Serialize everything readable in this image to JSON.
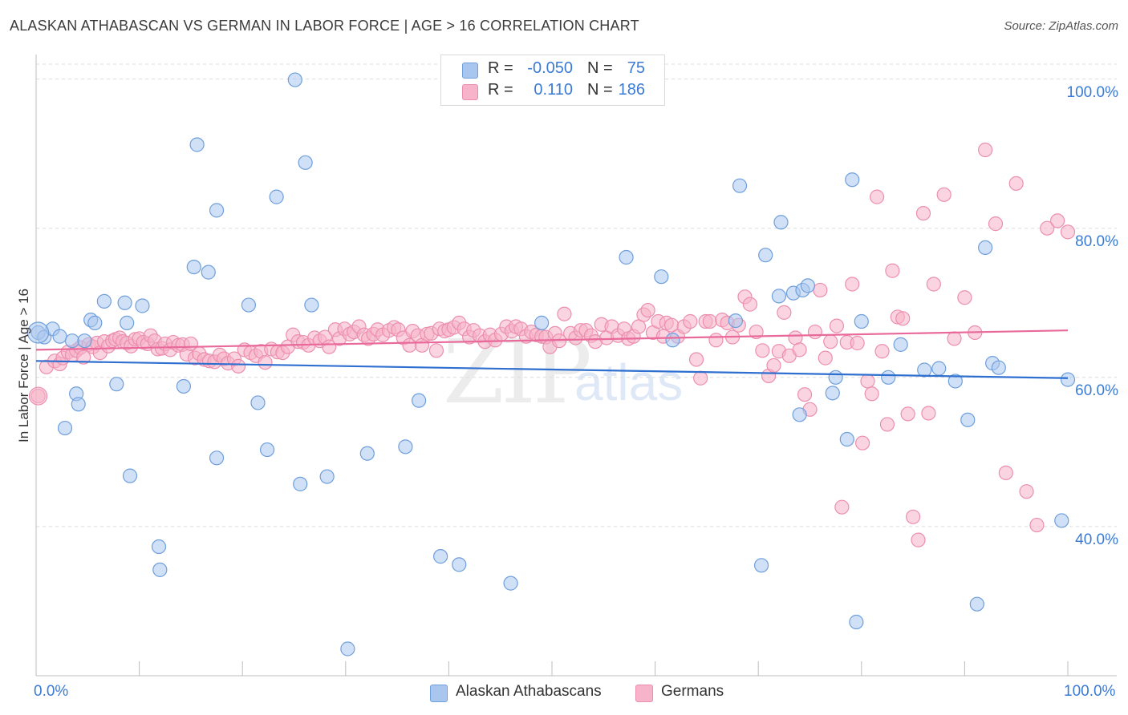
{
  "header": {
    "title": "ALASKAN ATHABASCAN VS GERMAN IN LABOR FORCE | AGE > 16 CORRELATION CHART",
    "source": "Source: ZipAtlas.com"
  },
  "watermark": {
    "zip": "ZIP",
    "atlas": "atlas"
  },
  "legend_top": {
    "rows": [
      {
        "r_label": "R =",
        "r_value": "-0.050",
        "n_label": "N =",
        "n_value": "75",
        "color": "#a9c6ee"
      },
      {
        "r_label": "R =",
        "r_value": "0.110",
        "n_label": "N =",
        "n_value": "186",
        "color": "#f6b3c9"
      }
    ]
  },
  "legend_bottom": {
    "items": [
      {
        "label": "Alaskan Athabascans",
        "color": "#a9c6ee"
      },
      {
        "label": "Germans",
        "color": "#f6b3c9"
      }
    ]
  },
  "colors": {
    "blue_fill": "#a9c6ee",
    "blue_stroke": "#6f9fdc",
    "blue_line": "#2f6fd0",
    "pink_fill": "#f6b3c9",
    "pink_stroke": "#ec8fae",
    "pink_line": "#e8699a",
    "value_text": "#3a7bd5",
    "grid": "#dcdcdc"
  },
  "chart_data": {
    "type": "scatter",
    "title": "ALASKAN ATHABASCAN VS GERMAN IN LABOR FORCE | AGE > 16 CORRELATION CHART",
    "xlabel": "",
    "ylabel": "In Labor Force | Age > 16",
    "xlim": [
      0,
      100
    ],
    "ylim": [
      20,
      102
    ],
    "x_tick_labels": [
      "0.0%",
      "100.0%"
    ],
    "y_ticks": [
      40,
      60,
      80,
      100
    ],
    "y_tick_labels": [
      "40.0%",
      "60.0%",
      "80.0%",
      "100.0%"
    ],
    "grid": "horizontal dashed",
    "legend_position": "top-center",
    "series": [
      {
        "name": "Alaskan Athabascans",
        "r": -0.05,
        "n": 75,
        "trend": [
          [
            0,
            62.2
          ],
          [
            100,
            59.9
          ]
        ],
        "points": [
          [
            0.2,
            66.0
          ],
          [
            0.8,
            65.4
          ],
          [
            1.6,
            66.5
          ],
          [
            2.3,
            65.5
          ],
          [
            2.8,
            53.2
          ],
          [
            3.5,
            64.9
          ],
          [
            3.9,
            57.8
          ],
          [
            4.1,
            56.4
          ],
          [
            4.7,
            64.9
          ],
          [
            5.3,
            67.7
          ],
          [
            5.7,
            67.3
          ],
          [
            6.6,
            70.2
          ],
          [
            7.8,
            59.1
          ],
          [
            8.6,
            70.0
          ],
          [
            8.8,
            67.3
          ],
          [
            9.1,
            46.8
          ],
          [
            10.3,
            69.6
          ],
          [
            11.9,
            37.3
          ],
          [
            12.0,
            34.2
          ],
          [
            14.3,
            58.8
          ],
          [
            15.3,
            74.8
          ],
          [
            15.6,
            91.2
          ],
          [
            16.7,
            74.1
          ],
          [
            17.5,
            82.4
          ],
          [
            17.5,
            49.2
          ],
          [
            20.6,
            69.7
          ],
          [
            21.5,
            56.6
          ],
          [
            22.4,
            50.3
          ],
          [
            23.3,
            84.2
          ],
          [
            25.1,
            99.9
          ],
          [
            25.6,
            45.7
          ],
          [
            26.1,
            88.8
          ],
          [
            26.7,
            69.7
          ],
          [
            28.2,
            46.7
          ],
          [
            30.2,
            23.6
          ],
          [
            32.1,
            49.8
          ],
          [
            35.8,
            50.7
          ],
          [
            37.1,
            56.9
          ],
          [
            39.2,
            36.0
          ],
          [
            41.0,
            34.9
          ],
          [
            46.0,
            32.4
          ],
          [
            49.0,
            67.3
          ],
          [
            57.2,
            76.1
          ],
          [
            60.6,
            73.5
          ],
          [
            61.7,
            65.0
          ],
          [
            67.8,
            67.6
          ],
          [
            68.2,
            85.7
          ],
          [
            70.3,
            34.8
          ],
          [
            70.7,
            76.4
          ],
          [
            72.0,
            70.9
          ],
          [
            72.2,
            80.8
          ],
          [
            73.4,
            71.3
          ],
          [
            74.0,
            55.0
          ],
          [
            74.3,
            71.7
          ],
          [
            74.8,
            72.3
          ],
          [
            77.2,
            57.9
          ],
          [
            77.5,
            60.0
          ],
          [
            78.6,
            51.7
          ],
          [
            79.1,
            86.5
          ],
          [
            79.5,
            27.2
          ],
          [
            80.0,
            67.5
          ],
          [
            82.6,
            60.0
          ],
          [
            83.8,
            64.4
          ],
          [
            86.1,
            61.0
          ],
          [
            87.5,
            61.2
          ],
          [
            89.1,
            59.5
          ],
          [
            90.3,
            54.3
          ],
          [
            91.2,
            29.6
          ],
          [
            92.0,
            77.4
          ],
          [
            92.7,
            61.9
          ],
          [
            93.3,
            61.3
          ],
          [
            99.4,
            40.8
          ],
          [
            100.0,
            59.7
          ]
        ]
      },
      {
        "name": "Germans",
        "r": 0.11,
        "n": 186,
        "trend": [
          [
            0,
            63.7
          ],
          [
            100,
            66.3
          ]
        ],
        "points": [
          [
            0.2,
            57.5
          ],
          [
            1.0,
            61.4
          ],
          [
            1.8,
            62.2
          ],
          [
            2.3,
            61.8
          ],
          [
            2.6,
            62.6
          ],
          [
            3.1,
            63.4
          ],
          [
            3.5,
            63.0
          ],
          [
            3.9,
            63.6
          ],
          [
            4.3,
            64.0
          ],
          [
            4.6,
            62.7
          ],
          [
            5.1,
            64.4
          ],
          [
            5.5,
            64.1
          ],
          [
            5.9,
            64.6
          ],
          [
            6.2,
            63.3
          ],
          [
            6.6,
            64.8
          ],
          [
            7.0,
            64.2
          ],
          [
            7.4,
            64.9
          ],
          [
            7.7,
            65.1
          ],
          [
            8.1,
            65.3
          ],
          [
            8.4,
            64.8
          ],
          [
            8.8,
            64.6
          ],
          [
            9.2,
            64.2
          ],
          [
            9.6,
            65.1
          ],
          [
            10.0,
            65.2
          ],
          [
            10.4,
            64.7
          ],
          [
            10.8,
            64.5
          ],
          [
            11.1,
            65.6
          ],
          [
            11.5,
            64.9
          ],
          [
            11.8,
            63.8
          ],
          [
            12.2,
            63.9
          ],
          [
            12.5,
            64.5
          ],
          [
            13.0,
            63.7
          ],
          [
            13.3,
            64.7
          ],
          [
            13.8,
            64.3
          ],
          [
            14.2,
            64.4
          ],
          [
            14.6,
            63.1
          ],
          [
            15.0,
            64.5
          ],
          [
            15.4,
            62.6
          ],
          [
            15.8,
            63.2
          ],
          [
            16.3,
            62.4
          ],
          [
            16.8,
            62.2
          ],
          [
            17.3,
            62.1
          ],
          [
            17.8,
            63.0
          ],
          [
            18.2,
            62.5
          ],
          [
            18.6,
            61.9
          ],
          [
            19.2,
            62.5
          ],
          [
            19.6,
            61.5
          ],
          [
            20.2,
            63.7
          ],
          [
            20.8,
            63.3
          ],
          [
            21.3,
            62.9
          ],
          [
            21.8,
            63.5
          ],
          [
            22.2,
            62.0
          ],
          [
            22.8,
            63.8
          ],
          [
            23.4,
            63.4
          ],
          [
            23.9,
            63.3
          ],
          [
            24.4,
            64.1
          ],
          [
            24.9,
            65.7
          ],
          [
            25.4,
            64.8
          ],
          [
            25.9,
            64.7
          ],
          [
            26.4,
            64.3
          ],
          [
            27.0,
            65.3
          ],
          [
            27.5,
            64.9
          ],
          [
            28.0,
            65.4
          ],
          [
            28.4,
            64.1
          ],
          [
            29.0,
            66.4
          ],
          [
            29.4,
            65.2
          ],
          [
            29.9,
            66.5
          ],
          [
            30.4,
            65.8
          ],
          [
            30.8,
            66.1
          ],
          [
            31.3,
            66.8
          ],
          [
            31.8,
            65.7
          ],
          [
            32.2,
            65.2
          ],
          [
            32.7,
            65.8
          ],
          [
            33.1,
            66.4
          ],
          [
            33.6,
            65.7
          ],
          [
            34.2,
            66.3
          ],
          [
            34.7,
            66.7
          ],
          [
            35.1,
            66.4
          ],
          [
            35.6,
            65.3
          ],
          [
            36.2,
            64.3
          ],
          [
            36.5,
            66.2
          ],
          [
            37.0,
            65.6
          ],
          [
            37.4,
            64.3
          ],
          [
            37.9,
            65.8
          ],
          [
            38.3,
            65.9
          ],
          [
            38.8,
            63.6
          ],
          [
            39.1,
            66.5
          ],
          [
            39.6,
            66.2
          ],
          [
            40.0,
            66.4
          ],
          [
            40.5,
            66.7
          ],
          [
            41.0,
            67.3
          ],
          [
            41.5,
            66.5
          ],
          [
            42.0,
            65.4
          ],
          [
            42.4,
            66.3
          ],
          [
            43.0,
            65.6
          ],
          [
            43.5,
            64.8
          ],
          [
            44.0,
            65.7
          ],
          [
            44.5,
            65.0
          ],
          [
            45.1,
            65.8
          ],
          [
            45.6,
            66.8
          ],
          [
            46.1,
            66.2
          ],
          [
            46.5,
            66.8
          ],
          [
            47.0,
            66.5
          ],
          [
            47.5,
            65.5
          ],
          [
            48.0,
            66.1
          ],
          [
            48.5,
            65.7
          ],
          [
            49.0,
            65.5
          ],
          [
            49.4,
            65.4
          ],
          [
            49.8,
            64.1
          ],
          [
            50.3,
            65.9
          ],
          [
            50.7,
            64.9
          ],
          [
            51.2,
            68.5
          ],
          [
            51.8,
            65.9
          ],
          [
            52.3,
            65.3
          ],
          [
            52.8,
            66.3
          ],
          [
            53.3,
            66.3
          ],
          [
            53.8,
            65.6
          ],
          [
            54.2,
            64.8
          ],
          [
            54.8,
            67.1
          ],
          [
            55.3,
            65.3
          ],
          [
            55.8,
            66.8
          ],
          [
            56.4,
            65.6
          ],
          [
            57.0,
            66.5
          ],
          [
            57.4,
            65.2
          ],
          [
            57.9,
            65.5
          ],
          [
            58.4,
            66.8
          ],
          [
            58.9,
            68.4
          ],
          [
            59.3,
            69.0
          ],
          [
            59.8,
            66.0
          ],
          [
            60.3,
            67.5
          ],
          [
            60.8,
            65.5
          ],
          [
            61.1,
            67.3
          ],
          [
            61.6,
            67.0
          ],
          [
            62.2,
            65.5
          ],
          [
            62.8,
            66.8
          ],
          [
            63.4,
            67.5
          ],
          [
            64.0,
            62.4
          ],
          [
            64.4,
            59.9
          ],
          [
            64.9,
            67.5
          ],
          [
            65.3,
            67.5
          ],
          [
            65.9,
            65.0
          ],
          [
            66.5,
            67.7
          ],
          [
            67.0,
            67.3
          ],
          [
            67.5,
            65.4
          ],
          [
            68.1,
            67.0
          ],
          [
            68.7,
            70.8
          ],
          [
            69.2,
            69.8
          ],
          [
            69.8,
            66.1
          ],
          [
            70.4,
            63.6
          ],
          [
            71.0,
            60.2
          ],
          [
            71.5,
            61.6
          ],
          [
            72.0,
            63.5
          ],
          [
            72.5,
            68.7
          ],
          [
            73.0,
            62.9
          ],
          [
            73.6,
            65.3
          ],
          [
            74.0,
            63.7
          ],
          [
            74.5,
            57.7
          ],
          [
            75.0,
            55.7
          ],
          [
            75.5,
            66.1
          ],
          [
            76.0,
            71.7
          ],
          [
            76.5,
            62.6
          ],
          [
            77.0,
            64.8
          ],
          [
            77.6,
            66.9
          ],
          [
            78.1,
            42.6
          ],
          [
            78.6,
            64.7
          ],
          [
            79.1,
            72.5
          ],
          [
            79.6,
            64.6
          ],
          [
            80.1,
            51.2
          ],
          [
            80.6,
            59.5
          ],
          [
            81.0,
            57.8
          ],
          [
            81.5,
            84.2
          ],
          [
            82.0,
            63.5
          ],
          [
            82.5,
            53.7
          ],
          [
            83.0,
            74.3
          ],
          [
            83.5,
            68.1
          ],
          [
            84.0,
            67.9
          ],
          [
            84.5,
            55.1
          ],
          [
            85.0,
            41.3
          ],
          [
            85.5,
            38.2
          ],
          [
            86.0,
            82.0
          ],
          [
            86.5,
            55.2
          ],
          [
            87.0,
            72.5
          ],
          [
            88.0,
            84.5
          ],
          [
            89.0,
            65.2
          ],
          [
            90.0,
            70.7
          ],
          [
            91.0,
            66.0
          ],
          [
            92.0,
            90.5
          ],
          [
            93.0,
            80.6
          ],
          [
            94.0,
            47.2
          ],
          [
            95.0,
            86.0
          ],
          [
            96.0,
            44.7
          ],
          [
            97.0,
            40.2
          ],
          [
            98.0,
            80.0
          ],
          [
            99.0,
            81.0
          ],
          [
            100.0,
            79.5
          ]
        ]
      }
    ]
  }
}
